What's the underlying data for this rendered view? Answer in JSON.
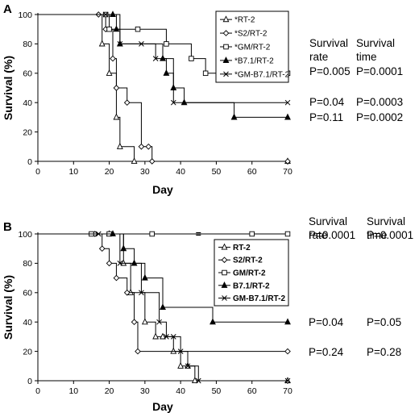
{
  "chart_data": [
    {
      "type": "line",
      "panel_label": "A",
      "xlabel": "Day",
      "ylabel": "Survival (%)",
      "xlim": [
        0,
        70
      ],
      "ylim": [
        0,
        100
      ],
      "xticks": [
        0,
        10,
        20,
        30,
        40,
        50,
        60,
        70
      ],
      "yticks": [
        0,
        20,
        40,
        60,
        80,
        100
      ],
      "legend_position": "top-right",
      "series": [
        {
          "name": "*RT-2",
          "marker": "open-triangle",
          "x": [
            0,
            18,
            20,
            22,
            23,
            27,
            70
          ],
          "y": [
            100,
            80,
            60,
            30,
            10,
            0,
            0
          ]
        },
        {
          "name": "*S2/RT-2",
          "marker": "open-diamond",
          "x": [
            0,
            17,
            19,
            21,
            22,
            25,
            29,
            31,
            32,
            70
          ],
          "y": [
            100,
            100,
            90,
            70,
            50,
            40,
            10,
            10,
            0,
            0
          ]
        },
        {
          "name": "*GM/RT-2",
          "marker": "open-square",
          "x": [
            0,
            19,
            20,
            28,
            36,
            43,
            47,
            70
          ],
          "y": [
            100,
            100,
            90,
            90,
            80,
            70,
            60,
            60
          ]
        },
        {
          "name": "*B7.1/RT-2",
          "marker": "filled-triangle",
          "x": [
            0,
            21,
            22,
            23,
            35,
            36,
            38,
            41,
            55,
            70
          ],
          "y": [
            100,
            100,
            90,
            80,
            70,
            60,
            50,
            40,
            30,
            30
          ]
        },
        {
          "name": "*GM-B7.1/RT-2",
          "marker": "x",
          "x": [
            0,
            19,
            23,
            29,
            33,
            38,
            70
          ],
          "y": [
            100,
            100,
            80,
            80,
            70,
            40,
            40
          ]
        }
      ],
      "stats_header": {
        "rate": "Survival\nrate",
        "time": "Survival\ntime"
      },
      "stats": [
        {
          "rate": "P=0.005",
          "time": "P=0.0001",
          "level": 60
        },
        {
          "rate": "P=0.04",
          "time": "P=0.0003",
          "level": 40
        },
        {
          "rate": "P=0.11",
          "time": "P=0.0002",
          "level": 30
        }
      ]
    },
    {
      "type": "line",
      "panel_label": "B",
      "xlabel": "Day",
      "ylabel": "Survival (%)",
      "xlim": [
        0,
        70
      ],
      "ylim": [
        0,
        100
      ],
      "xticks": [
        0,
        10,
        20,
        30,
        40,
        50,
        60,
        70
      ],
      "yticks": [
        0,
        20,
        40,
        60,
        80,
        100
      ],
      "legend_position": "top-center",
      "axis_break_at_x": 45,
      "series": [
        {
          "name": "RT-2",
          "marker": "open-triangle",
          "x": [
            0,
            20,
            24,
            26,
            30,
            33,
            35,
            38,
            40,
            42,
            44,
            70
          ],
          "y": [
            100,
            100,
            80,
            60,
            40,
            30,
            30,
            20,
            10,
            10,
            0,
            0
          ]
        },
        {
          "name": "S2/RT-2",
          "marker": "open-diamond",
          "x": [
            0,
            16,
            18,
            20,
            22,
            25,
            27,
            28,
            70
          ],
          "y": [
            100,
            100,
            90,
            80,
            70,
            60,
            40,
            20,
            20
          ]
        },
        {
          "name": "GM/RT-2",
          "marker": "open-square",
          "x": [
            0,
            15,
            20,
            32,
            60,
            70
          ],
          "y": [
            100,
            100,
            100,
            100,
            100,
            100
          ]
        },
        {
          "name": "B7.1/RT-2",
          "marker": "filled-triangle",
          "x": [
            0,
            21,
            24,
            27,
            30,
            35,
            49,
            70
          ],
          "y": [
            100,
            100,
            90,
            80,
            70,
            50,
            40,
            40
          ]
        },
        {
          "name": "GM-B7.1/RT-2",
          "marker": "x",
          "x": [
            0,
            17,
            23,
            29,
            34,
            36,
            38,
            40,
            42,
            45,
            70
          ],
          "y": [
            100,
            100,
            80,
            60,
            40,
            30,
            30,
            20,
            10,
            0,
            0
          ]
        }
      ],
      "stats_header": {
        "rate": "Survival\nrate",
        "time": "Survival\ntime"
      },
      "stats": [
        {
          "rate": "P=0.0001",
          "time": "P=0.0001",
          "level": 100
        },
        {
          "rate": "P=0.04",
          "time": "P=0.05",
          "level": 40
        },
        {
          "rate": "P=0.24",
          "time": "P=0.28",
          "level": 20
        }
      ]
    }
  ]
}
